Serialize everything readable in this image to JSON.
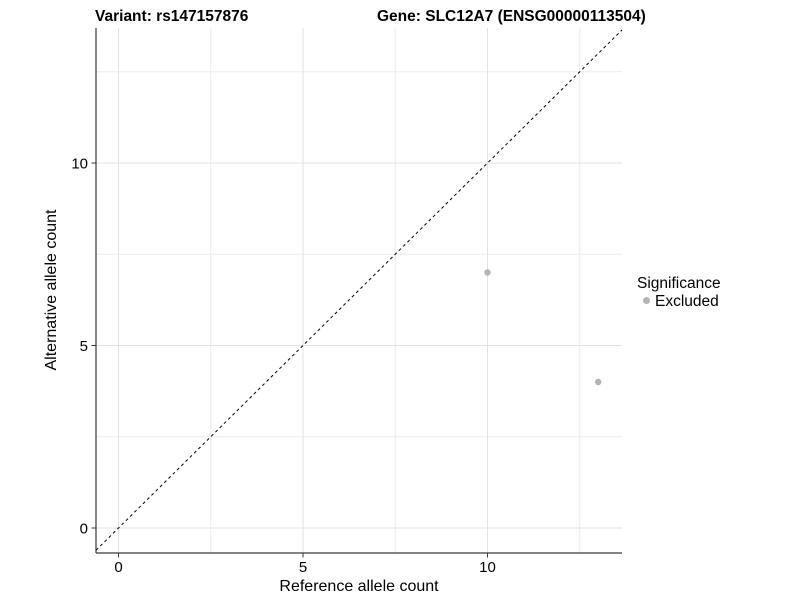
{
  "chart_data": {
    "type": "scatter",
    "title_left": "Variant: rs147157876",
    "title_right": "Gene: SLC12A7 (ENSG00000113504)",
    "xlabel": "Reference allele count",
    "ylabel": "Alternative allele count",
    "xlim": [
      -0.65,
      13.65
    ],
    "ylim": [
      -0.69,
      13.7
    ],
    "xticks": [
      0,
      5,
      10
    ],
    "yticks": [
      0,
      5,
      10
    ],
    "minor_gridlines": [
      2.5,
      7.5,
      12.5
    ],
    "grid": "on",
    "aspect": "equal",
    "identity_line": {
      "slope": 1,
      "intercept": 0,
      "style": "dashed",
      "color": "#000000"
    },
    "series": [
      {
        "name": "Excluded",
        "color": "#b4b4b4",
        "points": [
          [
            10,
            7
          ],
          [
            13,
            4
          ]
        ]
      }
    ],
    "legend": {
      "position": "right",
      "title": "Significance",
      "items": [
        {
          "label": "Excluded",
          "color": "#b4b4b4",
          "marker": "circle"
        }
      ]
    }
  }
}
